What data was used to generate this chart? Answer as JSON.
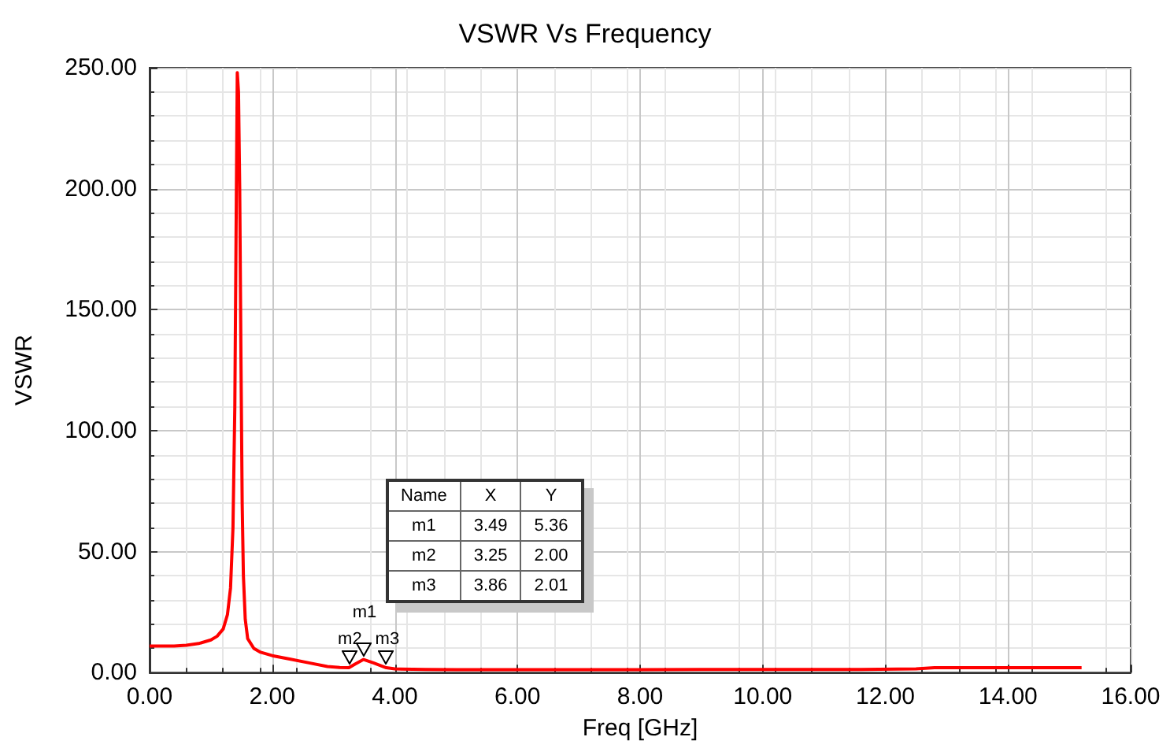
{
  "chart_data": {
    "type": "line",
    "title": "VSWR Vs Frequency",
    "xlabel": "Freq [GHz]",
    "ylabel": "VSWR",
    "x": [
      0,
      0.4,
      0.6,
      0.8,
      1.0,
      1.1,
      1.2,
      1.27,
      1.32,
      1.36,
      1.39,
      1.41,
      1.43,
      1.45,
      1.47,
      1.49,
      1.51,
      1.53,
      1.56,
      1.6,
      1.7,
      1.8,
      2.0,
      2.3,
      2.6,
      2.9,
      3.1,
      3.25,
      3.35,
      3.49,
      3.65,
      3.86,
      4.0,
      4.5,
      5.0,
      6.0,
      7.0,
      8.0,
      9.0,
      10.0,
      11.0,
      11.6,
      12.5,
      12.8,
      14.0,
      15.2
    ],
    "series": [
      {
        "color": "#ff0000",
        "values": [
          11,
          11,
          11.3,
          12,
          13.5,
          15,
          18,
          24,
          35,
          60,
          110,
          180,
          248,
          240,
          200,
          130,
          70,
          40,
          22,
          14,
          10,
          8.5,
          7,
          5.5,
          4,
          2.5,
          2.1,
          2.0,
          3.5,
          5.4,
          4,
          2.0,
          1.5,
          1.3,
          1.2,
          1.2,
          1.2,
          1.2,
          1.3,
          1.3,
          1.3,
          1.3,
          1.5,
          2,
          2,
          2
        ]
      }
    ],
    "xlim": [
      0,
      16
    ],
    "ylim": [
      0,
      250
    ],
    "xticks": [
      {
        "value": 0,
        "label": "0.00"
      },
      {
        "value": 2,
        "label": "2.00"
      },
      {
        "value": 4,
        "label": "4.00"
      },
      {
        "value": 6,
        "label": "6.00"
      },
      {
        "value": 8,
        "label": "8.00"
      },
      {
        "value": 10,
        "label": "10.00"
      },
      {
        "value": 12,
        "label": "12.00"
      },
      {
        "value": 14,
        "label": "14.00"
      },
      {
        "value": 16,
        "label": "16.00"
      }
    ],
    "yticks": [
      {
        "value": 0,
        "label": "0.00"
      },
      {
        "value": 50,
        "label": "50.00"
      },
      {
        "value": 100,
        "label": "100.00"
      },
      {
        "value": 150,
        "label": "150.00"
      },
      {
        "value": 200,
        "label": "200.00"
      },
      {
        "value": 250,
        "label": "250.00"
      }
    ],
    "grid": true,
    "marker": "none",
    "line_style": "solid",
    "annotations": [
      "Name",
      "X",
      "Y",
      "m1",
      "3.49",
      "5.36",
      "m2",
      "3.25",
      "2.00",
      "m3",
      "3.86",
      "2.01",
      {
        "text": "m1",
        "x": 3.49,
        "y": 5.36
      },
      {
        "text": "m2",
        "x": 3.25,
        "y": 2.0
      },
      {
        "text": "m3",
        "x": 3.86,
        "y": 2.01
      }
    ]
  }
}
